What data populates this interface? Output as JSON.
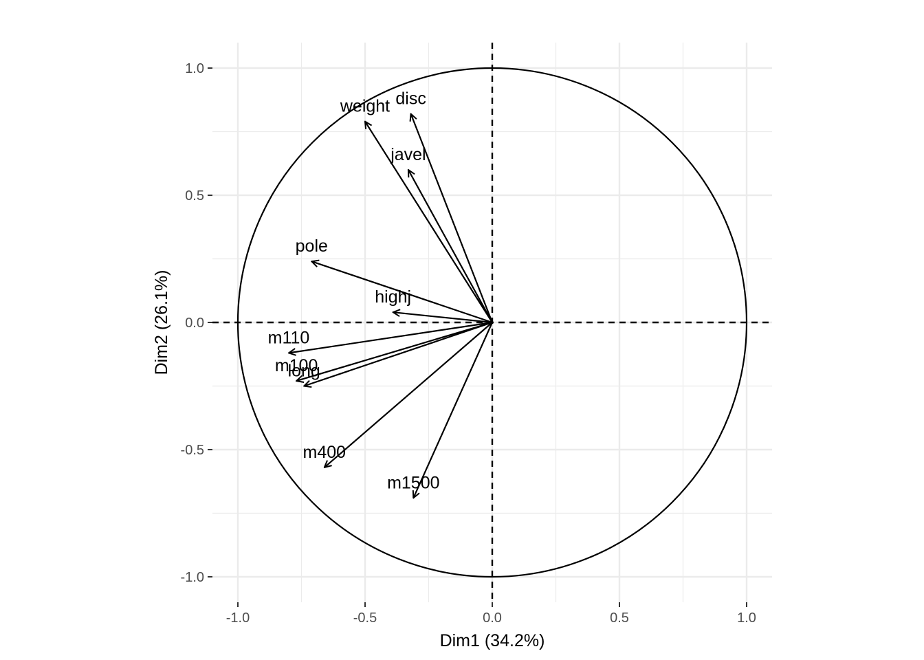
{
  "chart_data": {
    "type": "scatter",
    "subtype": "pca-variable-correlation-circle",
    "xlabel": "Dim1 (34.2%)",
    "ylabel": "Dim2 (26.1%)",
    "xlim": [
      -1.1,
      1.1
    ],
    "ylim": [
      -1.1,
      1.1
    ],
    "x_ticks": [
      -1.0,
      -0.5,
      0.0,
      0.5,
      1.0
    ],
    "y_ticks": [
      -1.0,
      -0.5,
      0.0,
      0.5,
      1.0
    ],
    "x_tick_labels": [
      "-1.0",
      "-0.5",
      "0.0",
      "0.5",
      "1.0"
    ],
    "y_tick_labels": [
      "-1.0",
      "-0.5",
      "0.0",
      "0.5",
      "1.0"
    ],
    "grid": true,
    "unit_circle": true,
    "reference_lines": {
      "x": 0,
      "y": 0,
      "style": "dashed"
    },
    "variables": [
      {
        "name": "m100",
        "x": -0.77,
        "y": -0.23
      },
      {
        "name": "long",
        "x": -0.74,
        "y": -0.25
      },
      {
        "name": "weight",
        "x": -0.5,
        "y": 0.79
      },
      {
        "name": "highj",
        "x": -0.39,
        "y": 0.04
      },
      {
        "name": "m400",
        "x": -0.66,
        "y": -0.57
      },
      {
        "name": "m110",
        "x": -0.8,
        "y": -0.12
      },
      {
        "name": "disc",
        "x": -0.32,
        "y": 0.82
      },
      {
        "name": "pole",
        "x": -0.71,
        "y": 0.24
      },
      {
        "name": "javel",
        "x": -0.33,
        "y": 0.6
      },
      {
        "name": "m1500",
        "x": -0.31,
        "y": -0.69
      }
    ],
    "colors": {
      "arrow": "#000000",
      "grid": "#ebebeb",
      "background": "#ffffff"
    }
  }
}
